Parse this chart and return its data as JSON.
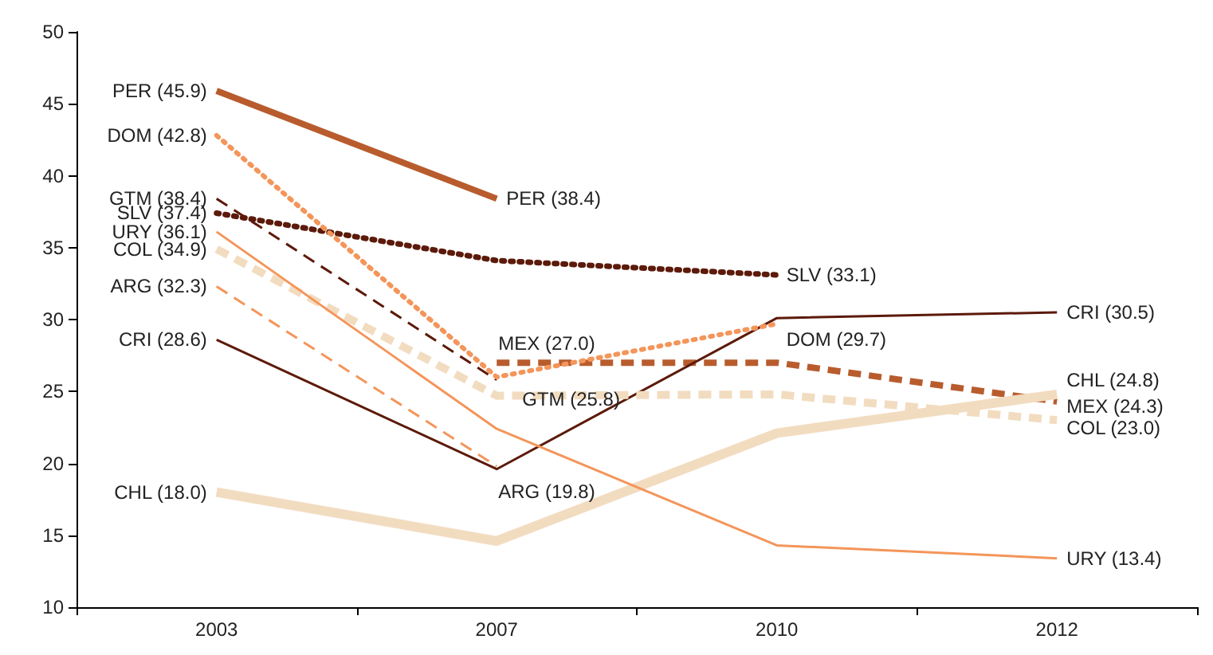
{
  "chart_data": {
    "type": "line",
    "categories": [
      "2003",
      "2007",
      "2010",
      "2012"
    ],
    "ylim": [
      10,
      50
    ],
    "yticks": [
      10,
      15,
      20,
      25,
      30,
      35,
      40,
      45,
      50
    ],
    "grid": false,
    "legend": false,
    "marker": "none",
    "series": [
      {
        "name": "PER",
        "color": "#b85c2e",
        "line_style": "solid",
        "values": [
          45.9,
          38.4,
          null,
          null
        ],
        "value_labels": [
          "(45.9)",
          "(38.4)",
          null,
          null
        ]
      },
      {
        "name": "DOM",
        "color": "#f4955a",
        "line_style": "dotted",
        "values": [
          42.8,
          26.0,
          29.7,
          null
        ],
        "value_labels": [
          "(42.8)",
          null,
          "(29.7)",
          null
        ]
      },
      {
        "name": "GTM",
        "color": "#5c1a0a",
        "line_style": "dashed",
        "values": [
          38.4,
          25.8,
          null,
          null
        ],
        "value_labels": [
          "(38.4)",
          "(25.8)",
          null,
          null
        ]
      },
      {
        "name": "SLV",
        "color": "#5c1a0a",
        "line_style": "dotted",
        "values": [
          37.4,
          34.1,
          33.1,
          null
        ],
        "value_labels": [
          "(37.4)",
          null,
          "(33.1)",
          null
        ]
      },
      {
        "name": "URY",
        "color": "#f4955a",
        "line_style": "solid",
        "values": [
          36.1,
          22.4,
          14.3,
          13.4
        ],
        "value_labels": [
          "(36.1)",
          null,
          null,
          "(13.4)"
        ]
      },
      {
        "name": "COL",
        "color": "#f2dcc0",
        "line_style": "dashed",
        "values": [
          34.9,
          24.7,
          24.8,
          23.0
        ],
        "value_labels": [
          "(34.9)",
          null,
          null,
          "(23.0)"
        ]
      },
      {
        "name": "ARG",
        "color": "#f4955a",
        "line_style": "dashed",
        "values": [
          32.3,
          19.8,
          null,
          null
        ],
        "value_labels": [
          "(32.3)",
          "(19.8)",
          null,
          null
        ]
      },
      {
        "name": "CRI",
        "color": "#5c1a0a",
        "line_style": "solid",
        "values": [
          28.6,
          19.6,
          30.1,
          30.5
        ],
        "value_labels": [
          "(28.6)",
          null,
          null,
          "(30.5)"
        ]
      },
      {
        "name": "CHL",
        "color": "#f2dcc0",
        "line_style": "solid",
        "values": [
          18.0,
          14.6,
          22.1,
          24.8
        ],
        "value_labels": [
          "(18.0)",
          null,
          null,
          "(24.8)"
        ]
      },
      {
        "name": "MEX",
        "color": "#b85c2e",
        "line_style": "dashed",
        "values": [
          null,
          27.0,
          27.0,
          24.3
        ],
        "value_labels": [
          null,
          "(27.0)",
          null,
          "(24.3)"
        ]
      }
    ]
  }
}
